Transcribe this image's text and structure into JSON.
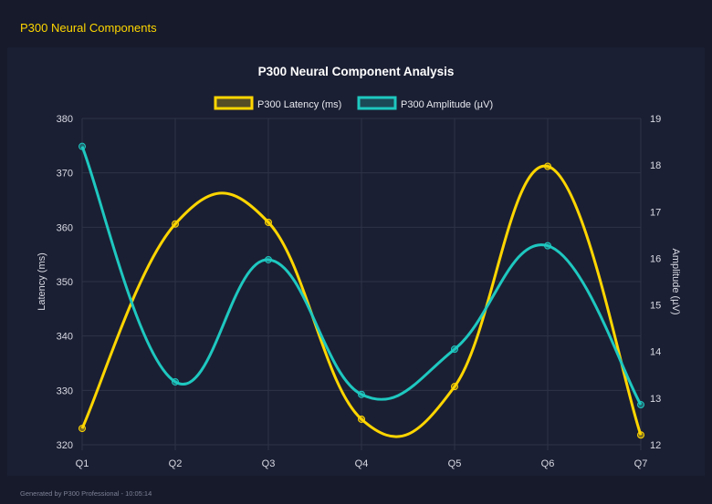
{
  "header": {
    "title": "P300 Neural Components"
  },
  "footer": {
    "text": "Generated by P300 Professional - 10:05:14"
  },
  "chart_data": {
    "type": "line",
    "title": "P300 Neural Component Analysis",
    "categories": [
      "Q1",
      "Q2",
      "Q3",
      "Q4",
      "Q5",
      "Q6",
      "Q7"
    ],
    "legend_position": "top",
    "grid": true,
    "y_left": {
      "label": "Latency (ms)",
      "range": [
        320,
        380
      ],
      "ticks": [
        320,
        330,
        340,
        350,
        360,
        370,
        380
      ]
    },
    "y_right": {
      "label": "Amplitude (µV)",
      "range": [
        12,
        19
      ],
      "ticks": [
        12,
        13,
        14,
        15,
        16,
        17,
        18,
        19
      ]
    },
    "series": [
      {
        "name": "P300 Latency (ms)",
        "axis": "left",
        "color": "#ffd600",
        "values": [
          323.0,
          360.6,
          360.9,
          324.7,
          330.7,
          371.2,
          321.8
        ]
      },
      {
        "name": "P300 Amplitude (µV)",
        "axis": "right",
        "color": "#1ec8c0",
        "values": [
          18.4,
          13.35,
          15.97,
          13.08,
          14.05,
          16.27,
          12.86
        ]
      }
    ]
  }
}
